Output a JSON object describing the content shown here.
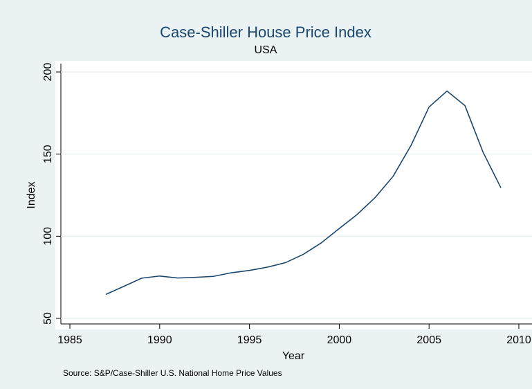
{
  "chart_data": {
    "type": "line",
    "title": "Case-Shiller House Price Index",
    "subtitle": "USA",
    "x_label": "Year",
    "y_label": "Index",
    "note": "Source: S&P/Case-Shiller U.S. National Home Price Values",
    "x": [
      1987,
      1988,
      1989,
      1990,
      1991,
      1992,
      1993,
      1994,
      1995,
      1996,
      1997,
      1998,
      1999,
      2000,
      2001,
      2002,
      2003,
      2004,
      2005,
      2006,
      2007,
      2008,
      2009
    ],
    "series": [
      {
        "name": "Index",
        "color": "#1a476f",
        "values": [
          64.6,
          69.5,
          74.5,
          75.8,
          74.6,
          75.0,
          75.6,
          77.8,
          79.2,
          81.2,
          83.9,
          89.0,
          96.0,
          104.7,
          113.3,
          123.6,
          136.5,
          155.4,
          178.7,
          188.4,
          179.5,
          151.3,
          129.5
        ]
      }
    ],
    "xlim": [
      1985,
      2010
    ],
    "xticks": [
      1985,
      1990,
      1995,
      2000,
      2005,
      2010
    ],
    "ylim": [
      50,
      200
    ],
    "yticks": [
      50,
      100,
      150,
      200
    ],
    "grid": true
  }
}
